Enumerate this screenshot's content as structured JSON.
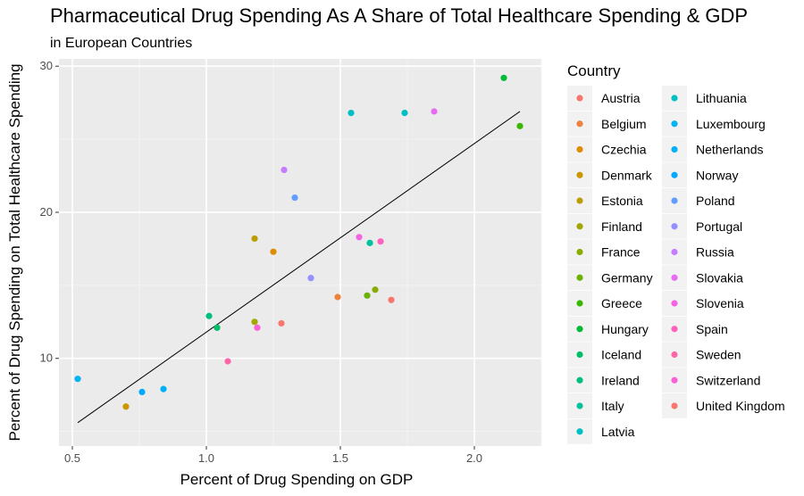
{
  "chart_data": {
    "type": "scatter",
    "title": "Pharmaceutical Drug Spending As A Share of Total Healthcare Spending & GDP",
    "subtitle": "in European Countries",
    "xlabel": "Percent of Drug Spending on GDP",
    "ylabel": "Percent of Drug Spending on Total Healthcare Spending",
    "xlim": [
      0.45,
      2.25
    ],
    "ylim": [
      4.0,
      30.5
    ],
    "x_ticks": [
      0.5,
      1.0,
      1.5,
      2.0
    ],
    "x_tick_labels": [
      "0.5",
      "1.0",
      "1.5",
      "2.0"
    ],
    "y_ticks": [
      10,
      20,
      30
    ],
    "y_tick_labels": [
      "10",
      "20",
      "30"
    ],
    "grid": true,
    "legend": {
      "title": "Country",
      "position": "right"
    },
    "trend_line": {
      "x": [
        0.52,
        2.17
      ],
      "y": [
        5.6,
        26.9
      ]
    },
    "series": [
      {
        "name": "Austria",
        "color": "#F8766D",
        "points": [
          [
            1.28,
            12.4
          ]
        ]
      },
      {
        "name": "Belgium",
        "color": "#EC823C",
        "points": [
          [
            1.49,
            14.2
          ]
        ]
      },
      {
        "name": "Czechia",
        "color": "#DE8C00",
        "points": [
          [
            1.25,
            17.3
          ]
        ]
      },
      {
        "name": "Denmark",
        "color": "#CD9600",
        "points": [
          [
            0.7,
            6.7
          ]
        ]
      },
      {
        "name": "Estonia",
        "color": "#BA9E00",
        "points": [
          [
            1.18,
            18.2
          ]
        ]
      },
      {
        "name": "Finland",
        "color": "#A3A500",
        "points": [
          [
            1.18,
            12.5
          ]
        ]
      },
      {
        "name": "France",
        "color": "#8AAB00",
        "points": [
          [
            1.63,
            14.7
          ]
        ]
      },
      {
        "name": "Germany",
        "color": "#6BB100",
        "points": [
          [
            1.6,
            14.3
          ]
        ]
      },
      {
        "name": "Greece",
        "color": "#39B600",
        "points": [
          [
            2.17,
            25.9
          ]
        ]
      },
      {
        "name": "Hungary",
        "color": "#00BA38",
        "points": [
          [
            2.11,
            29.2
          ]
        ]
      },
      {
        "name": "Iceland",
        "color": "#00BE67",
        "points": [
          [
            1.04,
            12.1
          ]
        ]
      },
      {
        "name": "Ireland",
        "color": "#00BF7D",
        "points": [
          [
            1.01,
            12.9
          ]
        ]
      },
      {
        "name": "Italy",
        "color": "#00C19A",
        "points": [
          [
            1.61,
            17.9
          ]
        ]
      },
      {
        "name": "Latvia",
        "color": "#00BFC4",
        "points": [
          [
            1.54,
            26.8
          ]
        ]
      },
      {
        "name": "Lithuania",
        "color": "#00BFC4",
        "points": [
          [
            1.74,
            26.8
          ]
        ]
      },
      {
        "name": "Luxembourg",
        "color": "#00B4EF",
        "points": [
          [
            0.52,
            8.6
          ]
        ]
      },
      {
        "name": "Netherlands",
        "color": "#00B0F6",
        "points": [
          [
            0.84,
            7.9
          ]
        ]
      },
      {
        "name": "Norway",
        "color": "#00A9FF",
        "points": [
          [
            0.76,
            7.7
          ]
        ]
      },
      {
        "name": "Poland",
        "color": "#619CFF",
        "points": [
          [
            1.33,
            21.0
          ]
        ]
      },
      {
        "name": "Portugal",
        "color": "#9590FF",
        "points": [
          [
            1.39,
            15.5
          ]
        ]
      },
      {
        "name": "Russia",
        "color": "#C77CFF",
        "points": [
          [
            1.29,
            22.9
          ]
        ]
      },
      {
        "name": "Slovakia",
        "color": "#E76BF3",
        "points": [
          [
            1.85,
            26.9
          ]
        ]
      },
      {
        "name": "Slovenia",
        "color": "#F564E3",
        "points": [
          [
            1.57,
            18.3
          ]
        ]
      },
      {
        "name": "Spain",
        "color": "#FF62BC",
        "points": [
          [
            1.65,
            18.0
          ]
        ]
      },
      {
        "name": "Sweden",
        "color": "#FF66A8",
        "points": [
          [
            1.08,
            9.8
          ]
        ]
      },
      {
        "name": "Switzerland",
        "color": "#FB61D7",
        "points": [
          [
            1.19,
            12.1
          ]
        ]
      },
      {
        "name": "United Kingdom",
        "color": "#F8766D",
        "points": [
          [
            1.69,
            14.0
          ]
        ]
      }
    ]
  }
}
